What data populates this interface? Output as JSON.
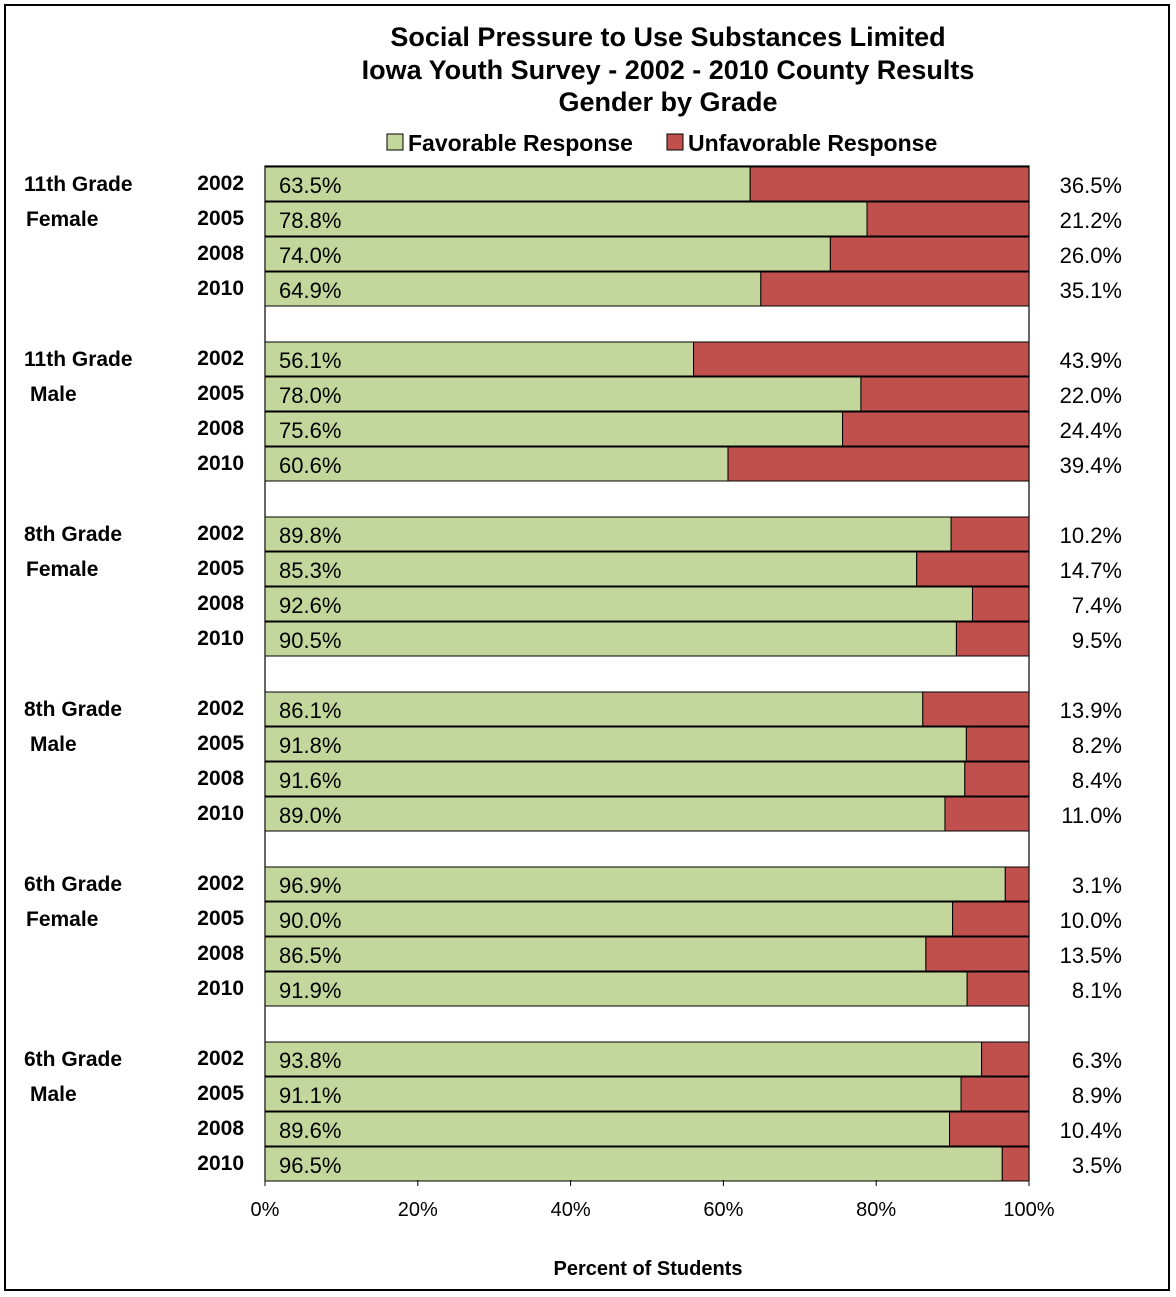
{
  "chart_data": {
    "type": "bar",
    "orientation": "horizontal",
    "stacked": true,
    "title": [
      "Social Pressure to Use Substances Limited",
      "Iowa Youth Survey - 2002 - 2010 County Results",
      "Gender by Grade"
    ],
    "xlabel": "Percent of Students",
    "xlim": [
      0,
      100
    ],
    "x_ticks": [
      "0%",
      "20%",
      "40%",
      "60%",
      "80%",
      "100%"
    ],
    "legend_position": "top",
    "series": [
      {
        "name": "Favorable Response",
        "color": "#c3d69b"
      },
      {
        "name": "Unfavorable Response",
        "color": "#c0504d"
      }
    ],
    "groups": [
      {
        "label_line1": "11th Grade",
        "label_line2": "Female",
        "rows": [
          {
            "year": "2002",
            "favorable": 63.5,
            "unfavorable": 36.5,
            "fav_label": "63.5%",
            "unfav_label": "36.5%"
          },
          {
            "year": "2005",
            "favorable": 78.8,
            "unfavorable": 21.2,
            "fav_label": "78.8%",
            "unfav_label": "21.2%"
          },
          {
            "year": "2008",
            "favorable": 74.0,
            "unfavorable": 26.0,
            "fav_label": "74.0%",
            "unfav_label": "26.0%"
          },
          {
            "year": "2010",
            "favorable": 64.9,
            "unfavorable": 35.1,
            "fav_label": "64.9%",
            "unfav_label": "35.1%"
          }
        ]
      },
      {
        "label_line1": "11th Grade",
        "label_line2": "Male",
        "rows": [
          {
            "year": "2002",
            "favorable": 56.1,
            "unfavorable": 43.9,
            "fav_label": "56.1%",
            "unfav_label": "43.9%"
          },
          {
            "year": "2005",
            "favorable": 78.0,
            "unfavorable": 22.0,
            "fav_label": "78.0%",
            "unfav_label": "22.0%"
          },
          {
            "year": "2008",
            "favorable": 75.6,
            "unfavorable": 24.4,
            "fav_label": "75.6%",
            "unfav_label": "24.4%"
          },
          {
            "year": "2010",
            "favorable": 60.6,
            "unfavorable": 39.4,
            "fav_label": "60.6%",
            "unfav_label": "39.4%"
          }
        ]
      },
      {
        "label_line1": "8th Grade",
        "label_line2": "Female",
        "rows": [
          {
            "year": "2002",
            "favorable": 89.8,
            "unfavorable": 10.2,
            "fav_label": "89.8%",
            "unfav_label": "10.2%"
          },
          {
            "year": "2005",
            "favorable": 85.3,
            "unfavorable": 14.7,
            "fav_label": "85.3%",
            "unfav_label": "14.7%"
          },
          {
            "year": "2008",
            "favorable": 92.6,
            "unfavorable": 7.4,
            "fav_label": "92.6%",
            "unfav_label": "7.4%"
          },
          {
            "year": "2010",
            "favorable": 90.5,
            "unfavorable": 9.5,
            "fav_label": "90.5%",
            "unfav_label": "9.5%"
          }
        ]
      },
      {
        "label_line1": "8th Grade",
        "label_line2": "Male",
        "rows": [
          {
            "year": "2002",
            "favorable": 86.1,
            "unfavorable": 13.9,
            "fav_label": "86.1%",
            "unfav_label": "13.9%"
          },
          {
            "year": "2005",
            "favorable": 91.8,
            "unfavorable": 8.2,
            "fav_label": "91.8%",
            "unfav_label": "8.2%"
          },
          {
            "year": "2008",
            "favorable": 91.6,
            "unfavorable": 8.4,
            "fav_label": "91.6%",
            "unfav_label": "8.4%"
          },
          {
            "year": "2010",
            "favorable": 89.0,
            "unfavorable": 11.0,
            "fav_label": "89.0%",
            "unfav_label": "11.0%"
          }
        ]
      },
      {
        "label_line1": "6th Grade",
        "label_line2": "Female",
        "rows": [
          {
            "year": "2002",
            "favorable": 96.9,
            "unfavorable": 3.1,
            "fav_label": "96.9%",
            "unfav_label": "3.1%"
          },
          {
            "year": "2005",
            "favorable": 90.0,
            "unfavorable": 10.0,
            "fav_label": "90.0%",
            "unfav_label": "10.0%"
          },
          {
            "year": "2008",
            "favorable": 86.5,
            "unfavorable": 13.5,
            "fav_label": "86.5%",
            "unfav_label": "13.5%"
          },
          {
            "year": "2010",
            "favorable": 91.9,
            "unfavorable": 8.1,
            "fav_label": "91.9%",
            "unfav_label": "8.1%"
          }
        ]
      },
      {
        "label_line1": "6th Grade",
        "label_line2": "Male",
        "rows": [
          {
            "year": "2002",
            "favorable": 93.8,
            "unfavorable": 6.3,
            "fav_label": "93.8%",
            "unfav_label": "6.3%"
          },
          {
            "year": "2005",
            "favorable": 91.1,
            "unfavorable": 8.9,
            "fav_label": "91.1%",
            "unfav_label": "8.9%"
          },
          {
            "year": "2008",
            "favorable": 89.6,
            "unfavorable": 10.4,
            "fav_label": "89.6%",
            "unfav_label": "10.4%"
          },
          {
            "year": "2010",
            "favorable": 96.5,
            "unfavorable": 3.5,
            "fav_label": "96.5%",
            "unfav_label": "3.5%"
          }
        ]
      }
    ]
  }
}
